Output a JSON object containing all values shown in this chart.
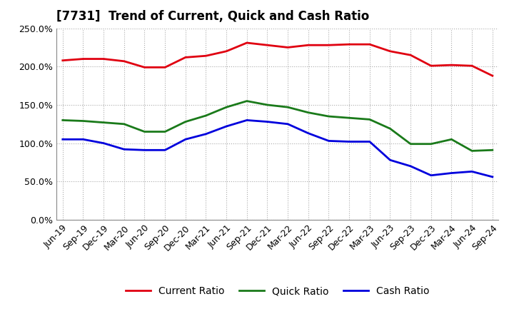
{
  "title": "[7731]  Trend of Current, Quick and Cash Ratio",
  "x_labels": [
    "Jun-19",
    "Sep-19",
    "Dec-19",
    "Mar-20",
    "Jun-20",
    "Sep-20",
    "Dec-20",
    "Mar-21",
    "Jun-21",
    "Sep-21",
    "Dec-21",
    "Mar-22",
    "Jun-22",
    "Sep-22",
    "Dec-22",
    "Mar-23",
    "Jun-23",
    "Sep-23",
    "Dec-23",
    "Mar-24",
    "Jun-24",
    "Sep-24"
  ],
  "current_ratio": [
    208,
    210,
    210,
    207,
    199,
    199,
    212,
    214,
    220,
    231,
    228,
    225,
    228,
    228,
    229,
    229,
    220,
    215,
    201,
    202,
    201,
    188
  ],
  "quick_ratio": [
    130,
    129,
    127,
    125,
    115,
    115,
    128,
    136,
    147,
    155,
    150,
    147,
    140,
    135,
    133,
    131,
    119,
    99,
    99,
    105,
    90,
    91
  ],
  "cash_ratio": [
    105,
    105,
    100,
    92,
    91,
    91,
    105,
    112,
    122,
    130,
    128,
    125,
    113,
    103,
    102,
    102,
    78,
    70,
    58,
    61,
    63,
    56
  ],
  "ylim": [
    0,
    250
  ],
  "yticks": [
    0,
    50,
    100,
    150,
    200,
    250
  ],
  "current_color": "#e00010",
  "quick_color": "#1a7a1a",
  "cash_color": "#0000dd",
  "bg_color": "#ffffff",
  "plot_bg_color": "#ffffff",
  "grid_color": "#aaaaaa",
  "title_fontsize": 12,
  "legend_fontsize": 10,
  "tick_fontsize": 9
}
